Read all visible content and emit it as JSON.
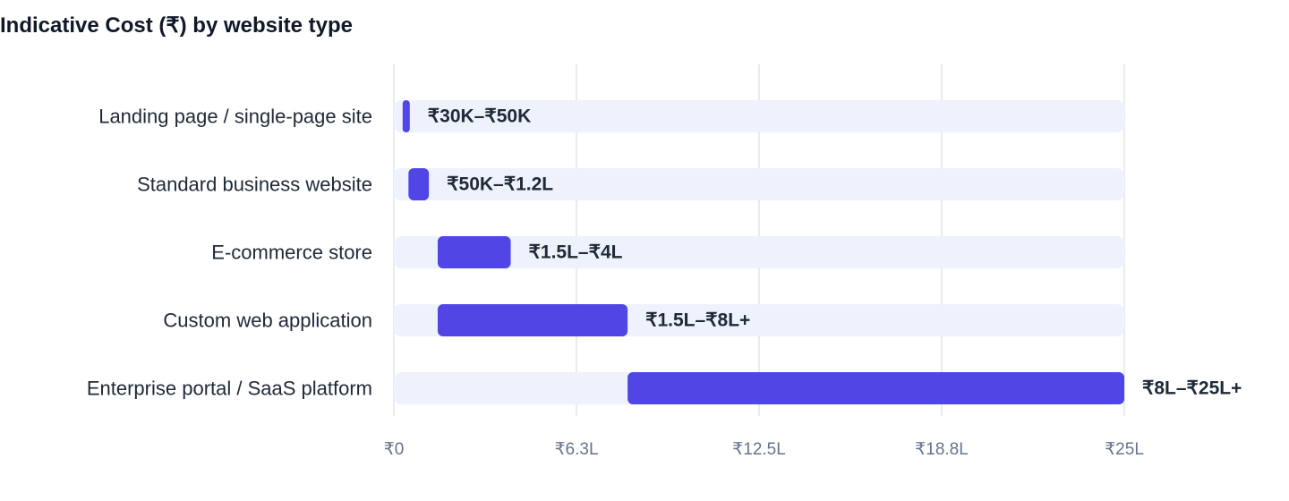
{
  "chart_data": {
    "type": "bar",
    "orientation": "horizontal",
    "title": "Indicative Cost (₹) by website type",
    "xlabel": "",
    "ylabel": "",
    "categories": [
      "Landing page / single-page site",
      "Standard business website",
      "E-commerce store",
      "Custom web application",
      "Enterprise portal / SaaS platform"
    ],
    "ranges": [
      {
        "low": 0.3,
        "high": 0.5,
        "label": "₹30K–₹50K"
      },
      {
        "low": 0.5,
        "high": 1.2,
        "label": "₹50K–₹1.2L"
      },
      {
        "low": 1.5,
        "high": 4,
        "label": "₹1.5L–₹4L"
      },
      {
        "low": 1.5,
        "high": 8,
        "label": "₹1.5L–₹8L+"
      },
      {
        "low": 8,
        "high": 25,
        "label": "₹8L–₹25L+"
      }
    ],
    "units": "lakh ₹",
    "xlim": [
      0,
      25
    ],
    "x_ticks": [
      0,
      6.25,
      12.5,
      18.75,
      25
    ],
    "x_tick_labels": [
      "₹0",
      "₹6.3L",
      "₹12.5L",
      "₹18.8L",
      "₹25L"
    ],
    "grid": true,
    "colors": {
      "bar": "#4f46e5",
      "track": "#eef2fc",
      "grid": "#e2e5ea"
    }
  }
}
